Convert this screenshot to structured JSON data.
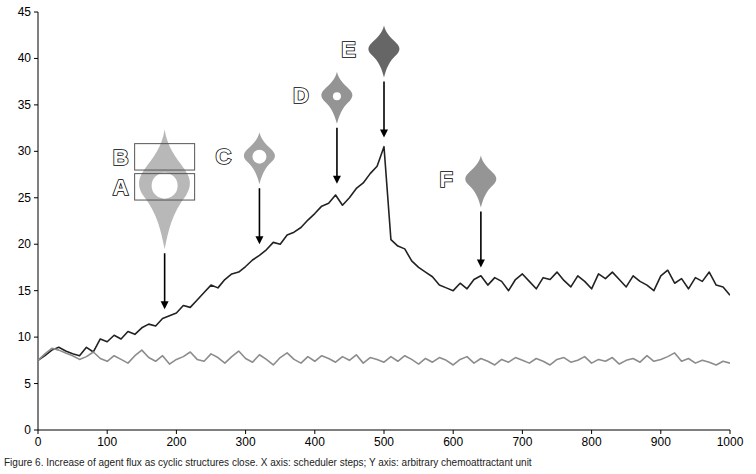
{
  "chart_data": {
    "type": "line",
    "caption": "Figure 6. Increase of agent flux as cyclic structures close. X axis: scheduler steps; Y axis: arbitrary chemoattractant unit",
    "x": [
      0,
      10,
      20,
      30,
      40,
      50,
      60,
      70,
      80,
      90,
      100,
      110,
      120,
      130,
      140,
      150,
      160,
      170,
      180,
      190,
      200,
      210,
      220,
      230,
      240,
      250,
      260,
      270,
      280,
      290,
      300,
      310,
      320,
      330,
      340,
      350,
      360,
      370,
      380,
      390,
      400,
      410,
      420,
      430,
      440,
      450,
      460,
      470,
      480,
      490,
      500,
      510,
      520,
      530,
      540,
      550,
      560,
      570,
      580,
      590,
      600,
      610,
      620,
      630,
      640,
      650,
      660,
      670,
      680,
      690,
      700,
      710,
      720,
      730,
      740,
      750,
      760,
      770,
      780,
      790,
      800,
      810,
      820,
      830,
      840,
      850,
      860,
      870,
      880,
      890,
      900,
      910,
      920,
      930,
      940,
      950,
      960,
      970,
      980,
      990,
      1000
    ],
    "series": [
      {
        "color": "#222222",
        "values": [
          7.5,
          8.0,
          8.6,
          8.9,
          8.5,
          8.2,
          8.0,
          8.9,
          8.4,
          9.8,
          9.5,
          10.2,
          9.8,
          10.6,
          10.3,
          11.0,
          11.4,
          11.2,
          12.0,
          12.3,
          12.6,
          13.4,
          13.2,
          14.0,
          14.8,
          15.6,
          15.3,
          16.2,
          16.8,
          17.0,
          17.6,
          18.3,
          18.8,
          19.4,
          20.2,
          20.0,
          21.0,
          21.3,
          21.8,
          22.6,
          23.3,
          24.1,
          24.4,
          25.3,
          24.2,
          25.0,
          26.0,
          26.6,
          27.6,
          28.4,
          30.5,
          20.5,
          19.8,
          19.5,
          18.2,
          17.5,
          17.0,
          16.5,
          15.6,
          15.3,
          15.0,
          15.8,
          15.2,
          16.2,
          16.6,
          15.6,
          16.4,
          16.0,
          15.0,
          16.2,
          16.8,
          16.0,
          15.2,
          16.4,
          16.2,
          17.0,
          16.1,
          15.4,
          16.6,
          16.0,
          15.2,
          16.8,
          16.3,
          17.0,
          16.2,
          15.4,
          16.6,
          16.0,
          15.6,
          15.0,
          16.6,
          17.2,
          15.8,
          16.3,
          15.2,
          16.4,
          16.0,
          17.0,
          15.6,
          15.4,
          14.5
        ]
      },
      {
        "color": "#8c8c8c",
        "values": [
          7.5,
          8.2,
          8.8,
          8.6,
          8.3,
          8.0,
          7.6,
          7.9,
          8.4,
          7.7,
          7.4,
          8.0,
          7.6,
          7.2,
          8.0,
          8.6,
          7.8,
          7.4,
          8.0,
          7.1,
          7.6,
          7.9,
          8.4,
          7.6,
          7.4,
          8.2,
          7.8,
          7.2,
          7.9,
          8.5,
          7.7,
          7.3,
          8.1,
          7.6,
          7.0,
          7.8,
          8.3,
          7.6,
          7.2,
          7.9,
          7.4,
          8.0,
          7.7,
          7.3,
          7.9,
          7.5,
          8.1,
          7.2,
          7.8,
          7.6,
          7.3,
          7.9,
          7.4,
          8.0,
          7.6,
          7.1,
          7.7,
          7.3,
          7.8,
          7.5,
          7.0,
          7.6,
          7.9,
          7.2,
          7.7,
          7.4,
          7.0,
          7.6,
          7.3,
          7.8,
          7.5,
          7.2,
          7.7,
          7.4,
          7.0,
          7.6,
          7.8,
          7.3,
          7.5,
          7.9,
          7.2,
          7.6,
          7.4,
          7.8,
          7.1,
          7.5,
          7.7,
          7.3,
          8.0,
          7.4,
          7.6,
          7.9,
          8.3,
          7.4,
          7.7,
          7.2,
          7.5,
          7.3,
          7.0,
          7.4,
          7.2
        ]
      }
    ],
    "annotations": [
      {
        "labels": [
          "B",
          "A"
        ],
        "x": 183,
        "y": 13
      },
      {
        "labels": [
          "C"
        ],
        "x": 320,
        "y": 20
      },
      {
        "labels": [
          "D"
        ],
        "x": 432,
        "y": 26.5
      },
      {
        "labels": [
          "E"
        ],
        "x": 500,
        "y": 31.5
      },
      {
        "labels": [
          "F"
        ],
        "x": 640,
        "y": 17.5
      }
    ],
    "xlim": [
      0,
      1000
    ],
    "xticks": [
      0,
      100,
      200,
      300,
      400,
      500,
      600,
      700,
      800,
      900,
      1000
    ],
    "ylim": [
      0,
      45
    ],
    "yticks": [
      0,
      5,
      10,
      15,
      20,
      25,
      30,
      35,
      40,
      45
    ],
    "grid": false
  }
}
